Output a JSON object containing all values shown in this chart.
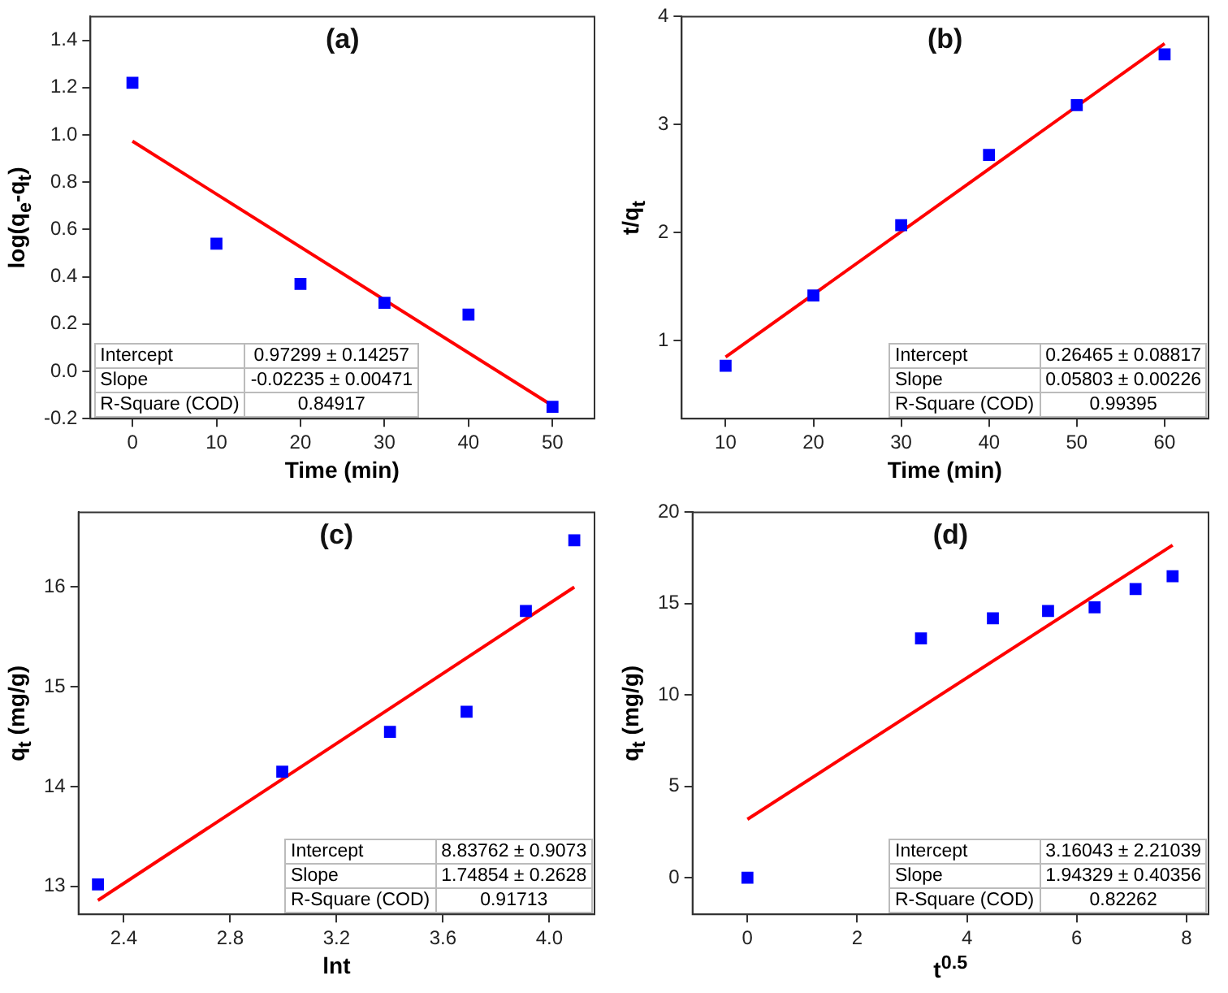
{
  "chart_data": [
    {
      "type": "scatter",
      "title": "(a)",
      "xlabel": "Time (min)",
      "ylabel": "log(q$_{e}$-q$_{t}$)",
      "xlim": [
        -5,
        55
      ],
      "xticks": [
        0,
        10,
        20,
        30,
        40,
        50
      ],
      "ylim": [
        -0.2,
        1.5
      ],
      "yticks": [
        {
          "value": -0.2,
          "label": "-0.2"
        },
        {
          "value": 0,
          "label": "0.0"
        },
        0.2,
        0.4,
        0.6,
        0.8,
        {
          "value": 1,
          "label": "1.0"
        },
        1.2,
        1.4
      ],
      "grid": false,
      "legend": false,
      "marker": "square",
      "series": [
        {
          "color": "#0000ff",
          "x": [
            0,
            10,
            20,
            30,
            40,
            50
          ],
          "values": [
            1.22,
            0.54,
            0.37,
            0.29,
            0.24,
            -0.15
          ]
        },
        {
          "type": "line",
          "color": "#ff0000",
          "marker": "none",
          "x": [
            0,
            50
          ],
          "values": [
            0.973,
            -0.145
          ]
        }
      ],
      "annotations": [
        "Intercept",
        "0.97299 ± 0.14257",
        "Slope",
        "-0.02235 ± 0.00471",
        "R-Square (COD)",
        "0.84917"
      ]
    },
    {
      "type": "scatter",
      "title": "(b)",
      "xlabel": "Time (min)",
      "ylabel": "t/q$_{t}$",
      "xlim": [
        5,
        65
      ],
      "xticks": [
        10,
        20,
        30,
        40,
        50,
        60
      ],
      "ylim": [
        0.28,
        4
      ],
      "yticks": [
        1,
        2,
        3,
        4
      ],
      "grid": false,
      "legend": false,
      "marker": "square",
      "series": [
        {
          "color": "#0000ff",
          "x": [
            10,
            20,
            30,
            40,
            50,
            60
          ],
          "values": [
            0.77,
            1.42,
            2.07,
            2.72,
            3.18,
            3.65
          ]
        },
        {
          "type": "line",
          "color": "#ff0000",
          "marker": "none",
          "x": [
            10,
            60
          ],
          "values": [
            0.85,
            3.75
          ]
        }
      ],
      "annotations": [
        "Intercept",
        "0.26465 ± 0.08817",
        "Slope",
        "0.05803 ± 0.00226",
        "R-Square (COD)",
        "0.99395"
      ]
    },
    {
      "type": "scatter",
      "title": "(c)",
      "xlabel": "lnt",
      "ylabel": "q$_{t}$ (mg/g)",
      "xlim": [
        2.23,
        4.17
      ],
      "xticks": [
        2.4,
        2.8,
        3.2,
        3.6,
        {
          "value": 4,
          "label": "4.0"
        }
      ],
      "ylim": [
        12.72,
        16.75
      ],
      "yticks": [
        13,
        14,
        15,
        16
      ],
      "grid": false,
      "legend": false,
      "marker": "square",
      "series": [
        {
          "color": "#0000ff",
          "x": [
            2.303,
            2.996,
            3.401,
            3.689,
            3.912,
            4.094
          ],
          "values": [
            13.02,
            14.15,
            14.55,
            14.75,
            15.76,
            16.47
          ]
        },
        {
          "type": "line",
          "color": "#ff0000",
          "marker": "none",
          "x": [
            2.303,
            4.094
          ],
          "values": [
            12.86,
            16.0
          ]
        }
      ],
      "annotations": [
        "Intercept",
        "8.83762 ± 0.9073",
        "Slope",
        "1.74854 ± 0.2628",
        "R-Square (COD)",
        "0.91713"
      ]
    },
    {
      "type": "scatter",
      "title": "(d)",
      "xlabel": "t$^{0.5}$",
      "ylabel": "q$_{t}$ (mg/g)",
      "xlim": [
        -1,
        8.4
      ],
      "xticks": [
        0,
        2,
        4,
        6,
        8
      ],
      "ylim": [
        -2,
        20
      ],
      "yticks": [
        0,
        5,
        10,
        15,
        20
      ],
      "grid": false,
      "legend": false,
      "marker": "square",
      "series": [
        {
          "color": "#0000ff",
          "x": [
            0,
            3.162,
            4.472,
            5.477,
            6.325,
            7.071,
            7.746
          ],
          "values": [
            0,
            13.1,
            14.2,
            14.6,
            14.8,
            15.8,
            16.5
          ]
        },
        {
          "type": "line",
          "color": "#ff0000",
          "marker": "none",
          "x": [
            0,
            7.746
          ],
          "values": [
            3.2,
            18.2
          ]
        }
      ],
      "annotations": [
        "Intercept",
        "3.16043 ± 2.21039",
        "Slope",
        "1.94329 ± 0.40356",
        "R-Square (COD)",
        "0.82262"
      ]
    }
  ]
}
